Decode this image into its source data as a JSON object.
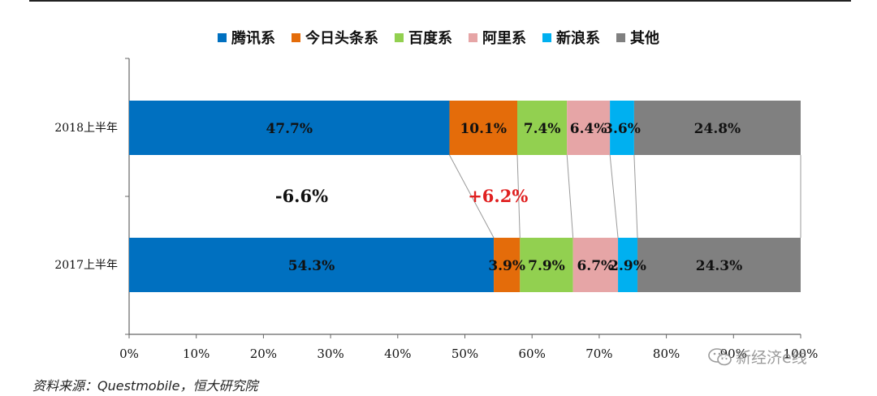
{
  "legend": {
    "items": [
      {
        "label": "腾讯系",
        "color": "#0070C0"
      },
      {
        "label": "今日头条系",
        "color": "#E46C0A"
      },
      {
        "label": "百度系",
        "color": "#92D050"
      },
      {
        "label": "阿里系",
        "color": "#E6A5A6"
      },
      {
        "label": "新浪系",
        "color": "#00B0F0"
      },
      {
        "label": "其他",
        "color": "#808080"
      }
    ]
  },
  "chart_data": {
    "type": "bar",
    "orientation": "horizontal",
    "stacked": "percent",
    "categories": [
      "2018上半年",
      "2017上半年"
    ],
    "series": [
      {
        "name": "腾讯系",
        "color": "#0070C0",
        "values": [
          47.7,
          54.3
        ],
        "labels": [
          "47.7%",
          "54.3%"
        ]
      },
      {
        "name": "今日头条系",
        "color": "#E46C0A",
        "values": [
          10.1,
          3.9
        ],
        "labels": [
          "10.1%",
          "3.9%"
        ]
      },
      {
        "name": "百度系",
        "color": "#92D050",
        "values": [
          7.4,
          7.9
        ],
        "labels": [
          "7.4%",
          "7.9%"
        ]
      },
      {
        "name": "阿里系",
        "color": "#E6A5A6",
        "values": [
          6.4,
          6.7
        ],
        "labels": [
          "6.4%",
          "6.7%"
        ]
      },
      {
        "name": "新浪系",
        "color": "#00B0F0",
        "values": [
          3.6,
          2.9
        ],
        "labels": [
          "3.6%",
          "2.9%"
        ]
      },
      {
        "name": "其他",
        "color": "#808080",
        "values": [
          24.8,
          24.3
        ],
        "labels": [
          "24.8%",
          "24.3%"
        ]
      }
    ],
    "xlim": [
      0,
      100
    ],
    "xticks": [
      "0%",
      "10%",
      "20%",
      "30%",
      "40%",
      "50%",
      "60%",
      "70%",
      "80%",
      "90%",
      "100%"
    ],
    "annotations": [
      {
        "text": "-6.6%",
        "color": "#111111"
      },
      {
        "text": "+6.2%",
        "color": "#E02020"
      }
    ],
    "series_lines": true,
    "legend_position": "top"
  },
  "source": "资料来源：Questmobile，恒大研究院",
  "watermark": "新经济e线"
}
